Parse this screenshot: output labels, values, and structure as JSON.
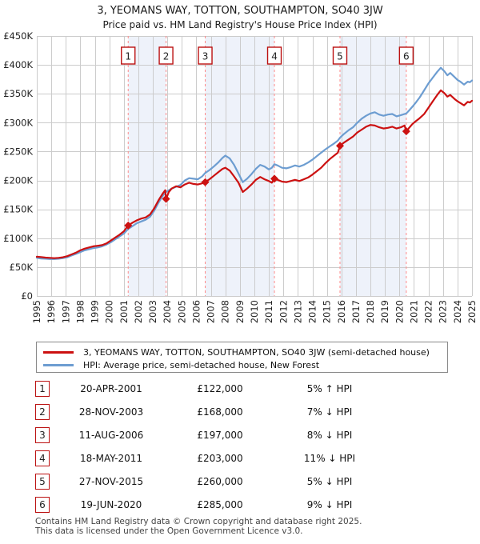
{
  "header": {
    "title": "3, YEOMANS WAY, TOTTON, SOUTHAMPTON, SO40 3JW",
    "subtitle": "Price paid vs. HM Land Registry's House Price Index (HPI)"
  },
  "chart_data": {
    "type": "line",
    "title": "3, YEOMANS WAY, TOTTON, SOUTHAMPTON, SO40 3JW",
    "subtitle": "Price paid vs. HM Land Registry's House Price Index (HPI)",
    "grid": true,
    "xlim": [
      1995,
      2025
    ],
    "ylim": [
      0,
      450000
    ],
    "y_unit": "GBP (thousands)",
    "x_ticks": [
      "1995",
      "1996",
      "1997",
      "1998",
      "1999",
      "2000",
      "2001",
      "2002",
      "2003",
      "2004",
      "2005",
      "2006",
      "2007",
      "2008",
      "2009",
      "2010",
      "2011",
      "2012",
      "2013",
      "2014",
      "2015",
      "2016",
      "2017",
      "2018",
      "2019",
      "2020",
      "2021",
      "2022",
      "2023",
      "2024",
      "2025"
    ],
    "y_ticks": [
      {
        "label": "£450K",
        "value": 450
      },
      {
        "label": "£400K",
        "value": 400
      },
      {
        "label": "£350K",
        "value": 350
      },
      {
        "label": "£300K",
        "value": 300
      },
      {
        "label": "£250K",
        "value": 250
      },
      {
        "label": "£200K",
        "value": 200
      },
      {
        "label": "£150K",
        "value": 150
      },
      {
        "label": "£100K",
        "value": 100
      },
      {
        "label": "£50K",
        "value": 50
      },
      {
        "label": "£0",
        "value": 0
      }
    ],
    "colors": {
      "property_line": "#cc1111",
      "hpi_line": "#6d9dd1",
      "grid": "#cccccc",
      "band_fill": "#eef2fa",
      "sale_dashed": "#ff8a8a",
      "marker_box_border": "#bb1111",
      "marker_text": "#222222",
      "dot": "#cc1111",
      "axis_text": "#222222"
    },
    "ownership_bands": [
      [
        2001.3,
        2003.91
      ],
      [
        2006.61,
        2011.38
      ],
      [
        2015.9,
        2020.47
      ]
    ],
    "sale_markers": [
      {
        "n": "1",
        "year": 2001.3,
        "price_k": 122
      },
      {
        "n": "2",
        "year": 2003.91,
        "price_k": 168
      },
      {
        "n": "3",
        "year": 2006.61,
        "price_k": 197
      },
      {
        "n": "4",
        "year": 2011.38,
        "price_k": 203
      },
      {
        "n": "5",
        "year": 2015.9,
        "price_k": 260
      },
      {
        "n": "6",
        "year": 2020.47,
        "price_k": 285
      }
    ],
    "series": [
      {
        "name": "3, YEOMANS WAY, TOTTON, SOUTHAMPTON, SO40 3JW (semi-detached house)",
        "color": "#cc1111",
        "points": [
          [
            1995.0,
            68
          ],
          [
            1995.3,
            67.5
          ],
          [
            1995.6,
            66.5
          ],
          [
            1995.9,
            66
          ],
          [
            1996.2,
            65.5
          ],
          [
            1996.5,
            66
          ],
          [
            1996.8,
            67
          ],
          [
            1997.1,
            69
          ],
          [
            1997.4,
            72
          ],
          [
            1997.7,
            75
          ],
          [
            1998.0,
            79
          ],
          [
            1998.3,
            82
          ],
          [
            1998.6,
            84
          ],
          [
            1998.9,
            86
          ],
          [
            1999.2,
            87
          ],
          [
            1999.5,
            88
          ],
          [
            1999.8,
            91
          ],
          [
            2000.1,
            96
          ],
          [
            2000.4,
            101
          ],
          [
            2000.7,
            106
          ],
          [
            2001.0,
            112
          ],
          [
            2001.3,
            122
          ],
          [
            2001.6,
            127
          ],
          [
            2001.9,
            131
          ],
          [
            2002.2,
            134
          ],
          [
            2002.5,
            136
          ],
          [
            2002.8,
            141
          ],
          [
            2003.1,
            152
          ],
          [
            2003.4,
            166
          ],
          [
            2003.7,
            178
          ],
          [
            2003.85,
            183
          ],
          [
            2003.91,
            168
          ],
          [
            2004.1,
            180
          ],
          [
            2004.3,
            186
          ],
          [
            2004.6,
            190
          ],
          [
            2004.9,
            188
          ],
          [
            2005.2,
            193
          ],
          [
            2005.5,
            196
          ],
          [
            2005.8,
            194
          ],
          [
            2006.1,
            193
          ],
          [
            2006.4,
            195
          ],
          [
            2006.61,
            197
          ],
          [
            2006.9,
            202
          ],
          [
            2007.2,
            208
          ],
          [
            2007.5,
            214
          ],
          [
            2007.8,
            220
          ],
          [
            2008.0,
            222
          ],
          [
            2008.3,
            217
          ],
          [
            2008.6,
            207
          ],
          [
            2008.9,
            196
          ],
          [
            2009.2,
            180
          ],
          [
            2009.5,
            186
          ],
          [
            2009.8,
            193
          ],
          [
            2010.1,
            201
          ],
          [
            2010.4,
            206
          ],
          [
            2010.7,
            202
          ],
          [
            2011.0,
            199
          ],
          [
            2011.2,
            196
          ],
          [
            2011.38,
            203
          ],
          [
            2011.6,
            201
          ],
          [
            2011.9,
            198
          ],
          [
            2012.2,
            197
          ],
          [
            2012.5,
            199
          ],
          [
            2012.8,
            201
          ],
          [
            2013.1,
            199
          ],
          [
            2013.4,
            202
          ],
          [
            2013.7,
            205
          ],
          [
            2014.0,
            210
          ],
          [
            2014.3,
            216
          ],
          [
            2014.6,
            222
          ],
          [
            2014.9,
            230
          ],
          [
            2015.2,
            237
          ],
          [
            2015.5,
            243
          ],
          [
            2015.75,
            248
          ],
          [
            2015.9,
            260
          ],
          [
            2016.2,
            266
          ],
          [
            2016.5,
            271
          ],
          [
            2016.8,
            276
          ],
          [
            2017.1,
            283
          ],
          [
            2017.4,
            288
          ],
          [
            2017.7,
            293
          ],
          [
            2018.0,
            296
          ],
          [
            2018.3,
            295
          ],
          [
            2018.6,
            292
          ],
          [
            2018.9,
            290
          ],
          [
            2019.2,
            291
          ],
          [
            2019.5,
            293
          ],
          [
            2019.8,
            290
          ],
          [
            2020.1,
            292
          ],
          [
            2020.35,
            295
          ],
          [
            2020.47,
            285
          ],
          [
            2020.7,
            292
          ],
          [
            2020.9,
            298
          ],
          [
            2021.1,
            302
          ],
          [
            2021.4,
            308
          ],
          [
            2021.7,
            315
          ],
          [
            2022.0,
            326
          ],
          [
            2022.3,
            337
          ],
          [
            2022.6,
            348
          ],
          [
            2022.85,
            356
          ],
          [
            2023.1,
            351
          ],
          [
            2023.3,
            345
          ],
          [
            2023.5,
            348
          ],
          [
            2023.8,
            341
          ],
          [
            2024.0,
            337
          ],
          [
            2024.2,
            334
          ],
          [
            2024.45,
            330
          ],
          [
            2024.7,
            336
          ],
          [
            2024.85,
            335
          ],
          [
            2025.0,
            338
          ]
        ]
      },
      {
        "name": "HPI: Average price, semi-detached house, New Forest",
        "color": "#6d9dd1",
        "points": [
          [
            1995.0,
            66
          ],
          [
            1995.3,
            65
          ],
          [
            1995.6,
            64.5
          ],
          [
            1995.9,
            64
          ],
          [
            1996.2,
            64
          ],
          [
            1996.5,
            64.5
          ],
          [
            1996.8,
            65.5
          ],
          [
            1997.1,
            67
          ],
          [
            1997.4,
            70
          ],
          [
            1997.7,
            73
          ],
          [
            1998.0,
            76
          ],
          [
            1998.3,
            79
          ],
          [
            1998.6,
            81
          ],
          [
            1998.9,
            83
          ],
          [
            1999.2,
            84
          ],
          [
            1999.5,
            86
          ],
          [
            1999.8,
            89
          ],
          [
            2000.1,
            93
          ],
          [
            2000.4,
            98
          ],
          [
            2000.7,
            103
          ],
          [
            2001.0,
            108
          ],
          [
            2001.3,
            116
          ],
          [
            2001.6,
            121
          ],
          [
            2001.9,
            126
          ],
          [
            2002.2,
            129
          ],
          [
            2002.5,
            132
          ],
          [
            2002.8,
            137
          ],
          [
            2003.1,
            148
          ],
          [
            2003.4,
            162
          ],
          [
            2003.7,
            174
          ],
          [
            2003.91,
            180
          ],
          [
            2004.1,
            183
          ],
          [
            2004.3,
            186
          ],
          [
            2004.6,
            189
          ],
          [
            2004.9,
            192
          ],
          [
            2005.2,
            200
          ],
          [
            2005.5,
            204
          ],
          [
            2005.8,
            203
          ],
          [
            2006.1,
            202
          ],
          [
            2006.4,
            207
          ],
          [
            2006.61,
            213
          ],
          [
            2006.9,
            218
          ],
          [
            2007.2,
            224
          ],
          [
            2007.5,
            231
          ],
          [
            2007.8,
            239
          ],
          [
            2008.0,
            243
          ],
          [
            2008.3,
            238
          ],
          [
            2008.6,
            227
          ],
          [
            2008.9,
            212
          ],
          [
            2009.2,
            197
          ],
          [
            2009.5,
            203
          ],
          [
            2009.8,
            211
          ],
          [
            2010.1,
            220
          ],
          [
            2010.4,
            227
          ],
          [
            2010.7,
            224
          ],
          [
            2011.0,
            219
          ],
          [
            2011.2,
            222
          ],
          [
            2011.38,
            228
          ],
          [
            2011.6,
            226
          ],
          [
            2011.9,
            222
          ],
          [
            2012.2,
            221
          ],
          [
            2012.5,
            223
          ],
          [
            2012.8,
            226
          ],
          [
            2013.1,
            224
          ],
          [
            2013.4,
            227
          ],
          [
            2013.7,
            231
          ],
          [
            2014.0,
            236
          ],
          [
            2014.3,
            242
          ],
          [
            2014.6,
            248
          ],
          [
            2014.9,
            254
          ],
          [
            2015.2,
            259
          ],
          [
            2015.5,
            264
          ],
          [
            2015.75,
            269
          ],
          [
            2015.9,
            274
          ],
          [
            2016.2,
            281
          ],
          [
            2016.5,
            287
          ],
          [
            2016.8,
            292
          ],
          [
            2017.1,
            300
          ],
          [
            2017.4,
            307
          ],
          [
            2017.7,
            312
          ],
          [
            2018.0,
            316
          ],
          [
            2018.3,
            318
          ],
          [
            2018.6,
            314
          ],
          [
            2018.9,
            312
          ],
          [
            2019.2,
            314
          ],
          [
            2019.5,
            315
          ],
          [
            2019.8,
            311
          ],
          [
            2020.1,
            313
          ],
          [
            2020.47,
            316
          ],
          [
            2020.7,
            322
          ],
          [
            2020.9,
            328
          ],
          [
            2021.1,
            334
          ],
          [
            2021.4,
            344
          ],
          [
            2021.7,
            356
          ],
          [
            2022.0,
            368
          ],
          [
            2022.3,
            378
          ],
          [
            2022.6,
            388
          ],
          [
            2022.85,
            395
          ],
          [
            2023.1,
            389
          ],
          [
            2023.3,
            382
          ],
          [
            2023.5,
            386
          ],
          [
            2023.8,
            379
          ],
          [
            2024.0,
            374
          ],
          [
            2024.2,
            371
          ],
          [
            2024.45,
            366
          ],
          [
            2024.7,
            371
          ],
          [
            2024.85,
            370
          ],
          [
            2025.0,
            373
          ]
        ]
      }
    ],
    "legend_position": "bottom"
  },
  "legend": {
    "items": [
      {
        "label": "3, YEOMANS WAY, TOTTON, SOUTHAMPTON, SO40 3JW (semi-detached house)",
        "color": "#cc1111"
      },
      {
        "label": "HPI: Average price, semi-detached house, New Forest",
        "color": "#6d9dd1"
      }
    ]
  },
  "transactions": [
    {
      "n": "1",
      "date": "20-APR-2001",
      "price": "£122,000",
      "hpi": "5% ↑ HPI"
    },
    {
      "n": "2",
      "date": "28-NOV-2003",
      "price": "£168,000",
      "hpi": "7% ↓ HPI"
    },
    {
      "n": "3",
      "date": "11-AUG-2006",
      "price": "£197,000",
      "hpi": "8% ↓ HPI"
    },
    {
      "n": "4",
      "date": "18-MAY-2011",
      "price": "£203,000",
      "hpi": "11% ↓ HPI"
    },
    {
      "n": "5",
      "date": "27-NOV-2015",
      "price": "£260,000",
      "hpi": "5% ↓ HPI"
    },
    {
      "n": "6",
      "date": "19-JUN-2020",
      "price": "£285,000",
      "hpi": "9% ↓ HPI"
    }
  ],
  "footer": {
    "line1": "Contains HM Land Registry data © Crown copyright and database right 2025.",
    "line2": "This data is licensed under the Open Government Licence v3.0."
  }
}
